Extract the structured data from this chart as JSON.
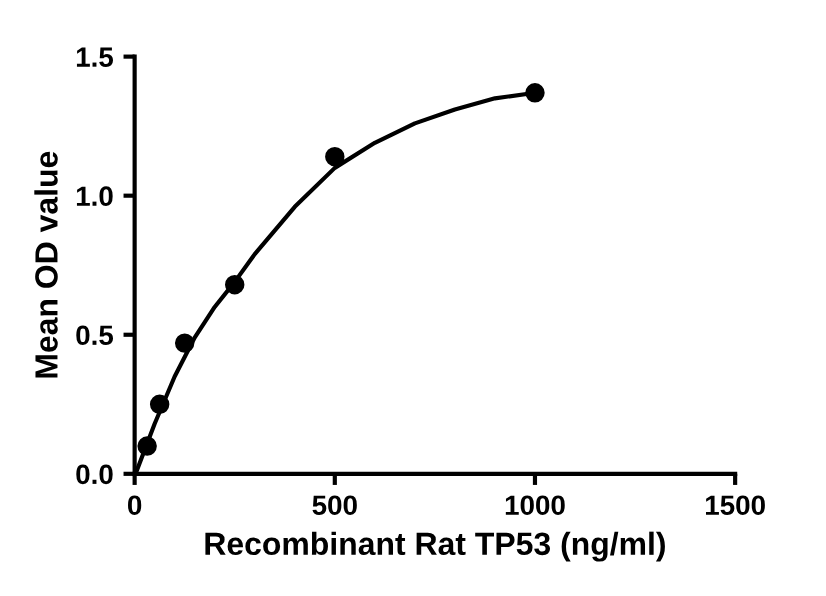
{
  "chart_data": {
    "type": "scatter",
    "xlabel": "Recombinant Rat TP53 (ng/ml)",
    "ylabel": "Mean OD value",
    "xlim": [
      0,
      1500
    ],
    "xticks": [
      0,
      500,
      1000,
      1500
    ],
    "ylim": [
      0,
      1.5
    ],
    "yticks": [
      {
        "value": 0,
        "label": "0.0"
      },
      0.5,
      {
        "value": 1,
        "label": "1.0"
      },
      1.5
    ],
    "grid": false,
    "series": [
      {
        "type": "scatter",
        "marker": "circle",
        "color": "#000000",
        "x": [
          31.25,
          62.5,
          125,
          250,
          500,
          1000
        ],
        "values": [
          0.1,
          0.25,
          0.47,
          0.68,
          1.14,
          1.37
        ]
      },
      {
        "type": "line",
        "color": "#000000",
        "x": [
          5,
          50,
          100,
          150,
          200,
          250,
          300,
          400,
          500,
          600,
          700,
          800,
          900,
          1000
        ],
        "values": [
          0.01,
          0.18,
          0.35,
          0.49,
          0.6,
          0.69,
          0.79,
          0.96,
          1.1,
          1.19,
          1.26,
          1.31,
          1.35,
          1.37
        ]
      }
    ]
  }
}
